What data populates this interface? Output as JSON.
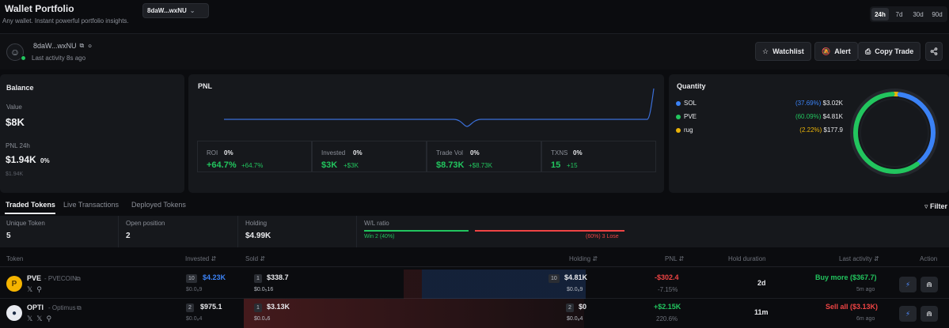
{
  "header": {
    "title": "Wallet Portfolio",
    "subtitle": "Any wallet. Instant powerful portfolio insights.",
    "wallet_short": "8daW...wxNU",
    "ranges": [
      "24h",
      "7d",
      "30d",
      "90d"
    ],
    "active_range": "24h"
  },
  "profile": {
    "address": "8daW...wxNU",
    "last_activity": "Last activity 8s ago",
    "buttons": {
      "watchlist": "Watchlist",
      "alert": "Alert",
      "copy_trade": "Copy Trade"
    }
  },
  "balance": {
    "title": "Balance",
    "value_label": "Value",
    "value": "$8K",
    "pnl_label": "PNL 24h",
    "pnl_value": "$1.94K",
    "pnl_pct": "0%",
    "pnl_sub": "$1.94K"
  },
  "pnl": {
    "title": "PNL",
    "stats": [
      {
        "label": "ROI",
        "pct": "0%",
        "value": "+64.7%",
        "sub": "+64.7%"
      },
      {
        "label": "Invested",
        "pct": "0%",
        "value": "$3K",
        "sub": "+$3K"
      },
      {
        "label": "Trade Vol",
        "pct": "0%",
        "value": "$8.73K",
        "sub": "+$8.73K"
      },
      {
        "label": "TXNS",
        "pct": "0%",
        "value": "15",
        "sub": "+15"
      }
    ]
  },
  "quantity": {
    "title": "Quantity",
    "items": [
      {
        "name": "SOL",
        "pct": "(37.69%)",
        "value": "$3.02K",
        "color": "#3b82f6",
        "share": 0.3769
      },
      {
        "name": "PVE",
        "pct": "(60.09%)",
        "value": "$4.81K",
        "color": "#22c55e",
        "share": 0.6009
      },
      {
        "name": "rug",
        "pct": "(2.22%)",
        "value": "$177.9",
        "color": "#eab308",
        "share": 0.0222
      }
    ]
  },
  "tabs": [
    "Traded Tokens",
    "Live Transactions",
    "Deployed Tokens"
  ],
  "filter_label": "Filter",
  "summary": {
    "unique_tokens_label": "Unique Token",
    "unique_tokens": "5",
    "open_position_label": "Open position",
    "open_position": "2",
    "holding_label": "Holding",
    "holding": "$4.99K",
    "wl_label": "W/L ratio",
    "win_text": "Win 2 (40%)",
    "lose_text": "(60%) 3 Lose",
    "win_fraction": 0.4
  },
  "table": {
    "columns": {
      "token": "Token",
      "invested": "Invested",
      "sold": "Sold",
      "holding": "Holding",
      "pnl": "PNL",
      "hold_duration": "Hold duration",
      "last_activity": "Last activity",
      "action": "Action"
    },
    "rows": [
      {
        "symbol": "PVE",
        "name": "- PVECOIN",
        "icon_color": "#f5b400",
        "invested_count": "10",
        "invested": "$4.23K",
        "invested_sub": "$0.0₈9",
        "sold_count": "1",
        "sold": "$338.7",
        "sold_sub": "$0.0₅16",
        "holding_count": "10",
        "holding": "$4.81K",
        "holding_sub": "$0.0₈9",
        "pnl": "-$302.4",
        "pnl_pct": "-7.15%",
        "duration": "2d",
        "activity": "Buy more ($367.7)",
        "activity_time": "5m ago"
      },
      {
        "symbol": "OPTI",
        "name": "- Optimus",
        "icon_color": "#e8eaf0",
        "invested_count": "2",
        "invested": "$975.1",
        "invested_sub": "$0.0₈4",
        "sold_count": "1",
        "sold": "$3.13K",
        "sold_sub": "$0.0₄6",
        "holding_count": "2",
        "holding": "$0",
        "holding_sub": "$0.0₈4",
        "pnl": "+$2.15K",
        "pnl_pct": "220.6%",
        "duration": "11m",
        "activity": "Sell all ($3.13K)",
        "activity_time": "6m ago"
      }
    ]
  }
}
